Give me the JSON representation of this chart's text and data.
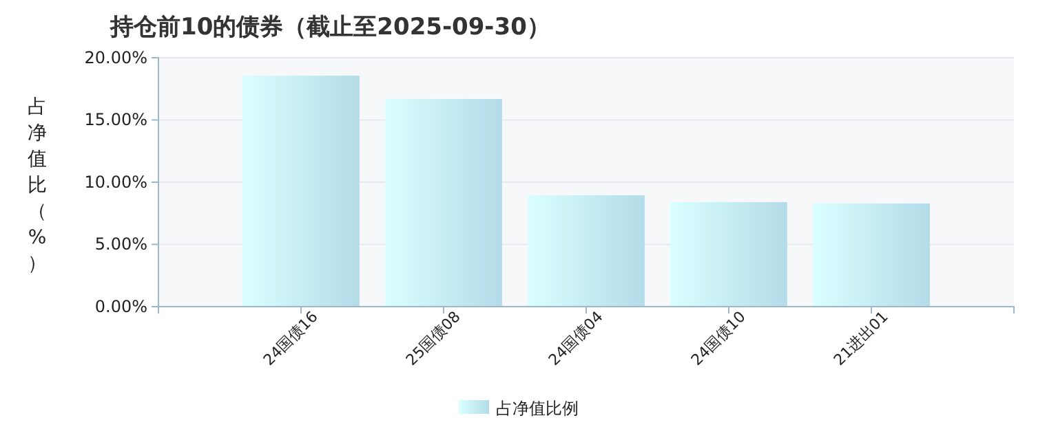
{
  "chart_data": {
    "type": "bar",
    "title": "持仓前10的债券（截止至2025-09-30）",
    "ylabel": "占净值比（%）",
    "categories": [
      "24国债16",
      "25国债08",
      "24国债04",
      "24国债10",
      "21进出01"
    ],
    "series": [
      {
        "name": "占净值比例",
        "color": "#bde8f5",
        "values": [
          18.56,
          16.69,
          8.95,
          8.4,
          8.29
        ]
      }
    ],
    "ylim": [
      0,
      20
    ],
    "yticks": [
      {
        "value": 0,
        "label": "0.00%"
      },
      {
        "value": 5,
        "label": "5.00%"
      },
      {
        "value": 10,
        "label": "10.00%"
      },
      {
        "value": 15,
        "label": "15.00%"
      },
      {
        "value": 20,
        "label": "20.00%"
      }
    ],
    "grid": "y",
    "legend": "bottom"
  }
}
